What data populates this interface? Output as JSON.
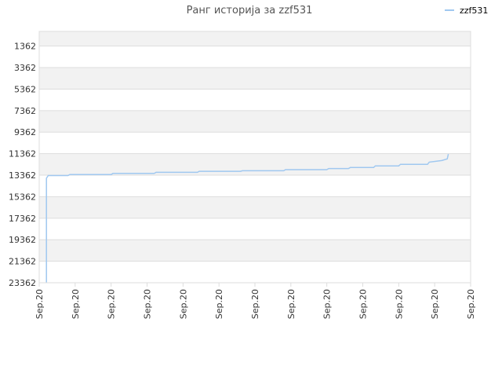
{
  "chart_data": {
    "type": "line",
    "title": "Ранг историја за zzf531",
    "xlabel": "",
    "ylabel": "",
    "y_inverted": true,
    "ylim": [
      23362,
      0
    ],
    "y_ticks": [
      1362,
      3362,
      5362,
      7362,
      9362,
      11362,
      13362,
      15362,
      17362,
      19362,
      21362,
      23362
    ],
    "x_tick_labels": [
      "Sep.20",
      "Sep.20",
      "Sep.20",
      "Sep.20",
      "Sep.20",
      "Sep.20",
      "Sep.20",
      "Sep.20",
      "Sep.20",
      "Sep.20",
      "Sep.20",
      "Sep.20",
      "Sep.20"
    ],
    "xlim": [
      0,
      12
    ],
    "grid": true,
    "legend_position": "top-right",
    "colors": {
      "series": "#a0c8f0",
      "band": "#f2f2f2",
      "grid": "#dddddd"
    },
    "series": [
      {
        "name": "zzf531",
        "points": [
          [
            0.2,
            23362
          ],
          [
            0.2,
            13650
          ],
          [
            0.25,
            13400
          ],
          [
            0.8,
            13400
          ],
          [
            0.85,
            13300
          ],
          [
            2.0,
            13300
          ],
          [
            2.05,
            13200
          ],
          [
            3.2,
            13200
          ],
          [
            3.25,
            13100
          ],
          [
            4.4,
            13100
          ],
          [
            4.45,
            13000
          ],
          [
            5.6,
            13000
          ],
          [
            5.65,
            12950
          ],
          [
            6.8,
            12950
          ],
          [
            6.85,
            12850
          ],
          [
            8.0,
            12850
          ],
          [
            8.05,
            12750
          ],
          [
            8.6,
            12750
          ],
          [
            8.65,
            12650
          ],
          [
            9.3,
            12650
          ],
          [
            9.35,
            12500
          ],
          [
            10.0,
            12500
          ],
          [
            10.05,
            12350
          ],
          [
            10.8,
            12350
          ],
          [
            10.85,
            12150
          ],
          [
            11.2,
            12000
          ],
          [
            11.35,
            11850
          ],
          [
            11.38,
            11400
          ]
        ]
      }
    ]
  }
}
